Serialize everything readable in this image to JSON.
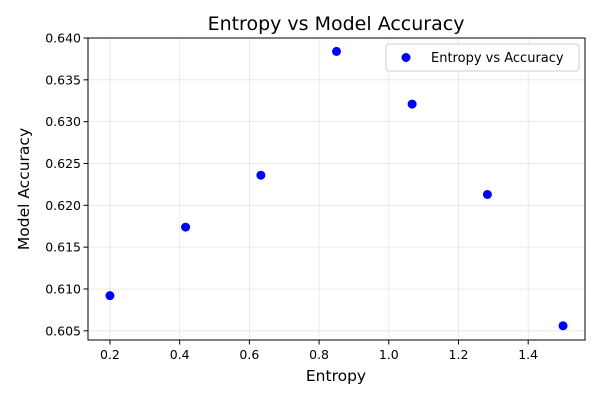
{
  "chart_data": {
    "type": "scatter",
    "title": "Entropy vs Model Accuracy",
    "xlabel": "Entropy",
    "ylabel": "Model Accuracy",
    "xlim": [
      0.137,
      1.563
    ],
    "ylim": [
      0.6039,
      0.64
    ],
    "xticks": [
      0.2,
      0.4,
      0.6,
      0.8,
      1.0,
      1.2,
      1.4
    ],
    "xtick_labels": [
      "0.2",
      "0.4",
      "0.6",
      "0.8",
      "1.0",
      "1.2",
      "1.4"
    ],
    "yticks": [
      0.605,
      0.61,
      0.615,
      0.62,
      0.625,
      0.63,
      0.635,
      0.64
    ],
    "ytick_labels": [
      "0.605",
      "0.610",
      "0.615",
      "0.620",
      "0.625",
      "0.630",
      "0.635",
      "0.640"
    ],
    "grid": true,
    "legend_position": "top-right",
    "series": [
      {
        "name": "Entropy vs Accuracy",
        "color": "#0000ff",
        "x": [
          0.2,
          0.417,
          0.633,
          0.85,
          1.067,
          1.283,
          1.5
        ],
        "y": [
          0.6092,
          0.6174,
          0.6236,
          0.6384,
          0.6321,
          0.6213,
          0.6056
        ]
      }
    ]
  }
}
